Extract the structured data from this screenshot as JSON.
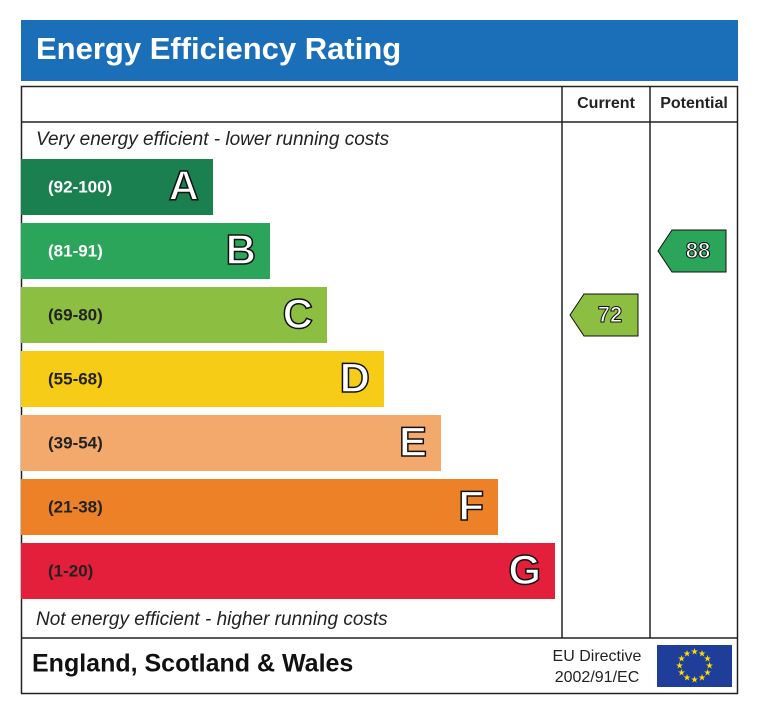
{
  "title": "Energy Efficiency Rating",
  "columns": {
    "current": "Current",
    "potential": "Potential"
  },
  "top_note": "Very energy efficient - lower running costs",
  "bottom_note": "Not energy efficient - higher running costs",
  "bands": [
    {
      "range": "(92-100)",
      "letter": "A",
      "color": "#1a8050"
    },
    {
      "range": "(81-91)",
      "letter": "B",
      "color": "#2aa55a"
    },
    {
      "range": "(69-80)",
      "letter": "C",
      "color": "#8cbf41"
    },
    {
      "range": "(55-68)",
      "letter": "D",
      "color": "#f6cc16"
    },
    {
      "range": "(39-54)",
      "letter": "E",
      "color": "#f2a96b"
    },
    {
      "range": "(21-38)",
      "letter": "F",
      "color": "#ec8128"
    },
    {
      "range": "(1-20)",
      "letter": "G",
      "color": "#e31f3b"
    }
  ],
  "current": 72,
  "potential": 88,
  "footer": {
    "region": "England, Scotland & Wales",
    "directive": "EU Directive",
    "directive_code": "2002/91/EC"
  }
}
